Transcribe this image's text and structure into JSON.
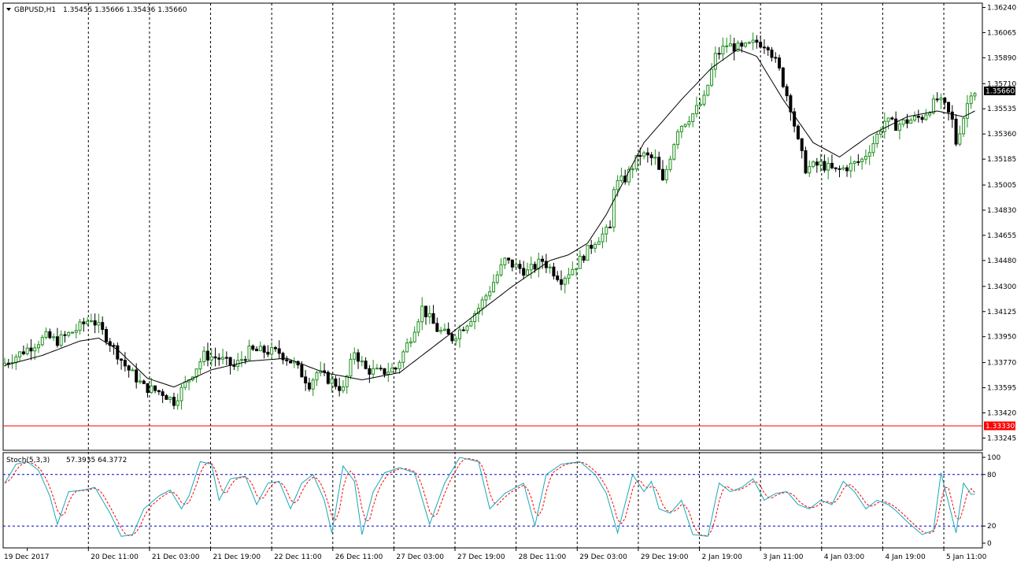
{
  "header": {
    "symbol": "GBPUSD,H1",
    "ohlc": "1.35455 1.35666 1.35436 1.35660"
  },
  "colors": {
    "bull": "#1e8f1e",
    "bear": "#000000",
    "ma": "#000000",
    "level": "#ff0000",
    "price_tag": "#000000",
    "stoch_main": "#1aa7b8",
    "stoch_signal": "#ff0000",
    "stoch_levels": "#0000cc",
    "grid": "#000000"
  },
  "chart_data": [
    {
      "type": "candlestick",
      "timeframe": "H1",
      "ylim": [
        1.3316,
        1.3627
      ],
      "y_ticks": [
        "1.36240",
        "1.36065",
        "1.35890",
        "1.35710",
        "1.35535",
        "1.35360",
        "1.35185",
        "1.35005",
        "1.34830",
        "1.34655",
        "1.34480",
        "1.34300",
        "1.34125",
        "1.33950",
        "1.33770",
        "1.33595",
        "1.33420",
        "1.33245"
      ],
      "x_ticks": [
        "19 Dec 2017",
        "20 Dec 11:00",
        "21 Dec 03:00",
        "21 Dec 19:00",
        "22 Dec 11:00",
        "26 Dec 11:00",
        "27 Dec 03:00",
        "27 Dec 19:00",
        "28 Dec 11:00",
        "29 Dec 03:00",
        "29 Dec 19:00",
        "2 Jan 19:00",
        "3 Jan 11:00",
        "4 Jan 03:00",
        "4 Jan 19:00",
        "5 Jan 11:00"
      ],
      "current_price": "1.35660",
      "level_price": "1.33330",
      "ma_path": [
        [
          0,
          1.3375
        ],
        [
          10,
          1.3382
        ],
        [
          20,
          1.3392
        ],
        [
          25,
          1.3394
        ],
        [
          30,
          1.3386
        ],
        [
          38,
          1.3366
        ],
        [
          45,
          1.336
        ],
        [
          55,
          1.3372
        ],
        [
          65,
          1.3378
        ],
        [
          75,
          1.338
        ],
        [
          85,
          1.337
        ],
        [
          95,
          1.3365
        ],
        [
          105,
          1.337
        ],
        [
          115,
          1.339
        ],
        [
          125,
          1.341
        ],
        [
          135,
          1.343
        ],
        [
          145,
          1.3448
        ],
        [
          150,
          1.3452
        ],
        [
          155,
          1.346
        ],
        [
          160,
          1.348
        ],
        [
          170,
          1.353
        ],
        [
          180,
          1.356
        ],
        [
          188,
          1.3582
        ],
        [
          195,
          1.3595
        ],
        [
          200,
          1.359
        ],
        [
          207,
          1.356
        ],
        [
          215,
          1.353
        ],
        [
          222,
          1.352
        ],
        [
          230,
          1.3535
        ],
        [
          240,
          1.3548
        ],
        [
          248,
          1.3552
        ],
        [
          255,
          1.3548
        ],
        [
          258,
          1.3552
        ]
      ],
      "candles_anchor": [
        [
          0,
          1.3375
        ],
        [
          6,
          1.3385
        ],
        [
          12,
          1.3395
        ],
        [
          15,
          1.3392
        ],
        [
          20,
          1.34
        ],
        [
          24,
          1.3408
        ],
        [
          28,
          1.3395
        ],
        [
          33,
          1.3375
        ],
        [
          38,
          1.336
        ],
        [
          43,
          1.3356
        ],
        [
          46,
          1.335
        ],
        [
          49,
          1.3362
        ],
        [
          54,
          1.3382
        ],
        [
          58,
          1.338
        ],
        [
          62,
          1.3374
        ],
        [
          66,
          1.3385
        ],
        [
          70,
          1.3385
        ],
        [
          74,
          1.3384
        ],
        [
          78,
          1.3376
        ],
        [
          82,
          1.3362
        ],
        [
          84,
          1.337
        ],
        [
          88,
          1.3364
        ],
        [
          91,
          1.3358
        ],
        [
          94,
          1.3385
        ],
        [
          97,
          1.3372
        ],
        [
          101,
          1.337
        ],
        [
          105,
          1.3373
        ],
        [
          109,
          1.3395
        ],
        [
          112,
          1.3415
        ],
        [
          116,
          1.34
        ],
        [
          120,
          1.3394
        ],
        [
          124,
          1.3405
        ],
        [
          127,
          1.3415
        ],
        [
          130,
          1.3428
        ],
        [
          134,
          1.3448
        ],
        [
          136,
          1.3445
        ],
        [
          140,
          1.344
        ],
        [
          144,
          1.3448
        ],
        [
          149,
          1.3435
        ],
        [
          153,
          1.3445
        ],
        [
          156,
          1.3455
        ],
        [
          158,
          1.3462
        ],
        [
          162,
          1.347
        ],
        [
          163,
          1.35
        ],
        [
          166,
          1.3505
        ],
        [
          170,
          1.3522
        ],
        [
          174,
          1.3518
        ],
        [
          176,
          1.3502
        ],
        [
          180,
          1.354
        ],
        [
          184,
          1.355
        ],
        [
          187,
          1.356
        ],
        [
          190,
          1.359
        ],
        [
          193,
          1.3598
        ],
        [
          197,
          1.3595
        ],
        [
          201,
          1.36
        ],
        [
          204,
          1.3598
        ],
        [
          207,
          1.358
        ],
        [
          210,
          1.3555
        ],
        [
          212,
          1.353
        ],
        [
          214,
          1.3512
        ],
        [
          218,
          1.3515
        ],
        [
          222,
          1.351
        ],
        [
          226,
          1.3514
        ],
        [
          229,
          1.3518
        ],
        [
          232,
          1.353
        ],
        [
          235,
          1.3545
        ],
        [
          238,
          1.3542
        ],
        [
          241,
          1.3545
        ],
        [
          245,
          1.3548
        ],
        [
          249,
          1.356
        ],
        [
          251,
          1.3555
        ],
        [
          253,
          1.3545
        ],
        [
          254,
          1.353
        ],
        [
          256,
          1.3548
        ],
        [
          258,
          1.3566
        ]
      ],
      "volatility": 0.0012
    },
    {
      "type": "line",
      "name": "Stoch(5,3,3)",
      "values_text": "57.3935 64.3772",
      "ylim": [
        0,
        100
      ],
      "y_ticks": [
        "100",
        "80",
        "20",
        "0"
      ],
      "levels": [
        80,
        20
      ],
      "main_anchor": [
        [
          0,
          70
        ],
        [
          3,
          92
        ],
        [
          6,
          95
        ],
        [
          9,
          85
        ],
        [
          12,
          55
        ],
        [
          14,
          22
        ],
        [
          17,
          60
        ],
        [
          21,
          62
        ],
        [
          24,
          65
        ],
        [
          28,
          35
        ],
        [
          31,
          8
        ],
        [
          34,
          10
        ],
        [
          37,
          40
        ],
        [
          41,
          55
        ],
        [
          44,
          62
        ],
        [
          47,
          40
        ],
        [
          49,
          55
        ],
        [
          52,
          95
        ],
        [
          55,
          92
        ],
        [
          57,
          50
        ],
        [
          60,
          75
        ],
        [
          64,
          78
        ],
        [
          67,
          45
        ],
        [
          70,
          70
        ],
        [
          73,
          72
        ],
        [
          76,
          40
        ],
        [
          79,
          70
        ],
        [
          82,
          80
        ],
        [
          85,
          50
        ],
        [
          87,
          12
        ],
        [
          90,
          90
        ],
        [
          93,
          72
        ],
        [
          95,
          10
        ],
        [
          98,
          60
        ],
        [
          101,
          82
        ],
        [
          105,
          88
        ],
        [
          109,
          82
        ],
        [
          113,
          22
        ],
        [
          117,
          70
        ],
        [
          121,
          100
        ],
        [
          126,
          95
        ],
        [
          129,
          40
        ],
        [
          133,
          58
        ],
        [
          138,
          70
        ],
        [
          141,
          20
        ],
        [
          144,
          80
        ],
        [
          148,
          92
        ],
        [
          153,
          95
        ],
        [
          157,
          80
        ],
        [
          160,
          58
        ],
        [
          163,
          12
        ],
        [
          167,
          80
        ],
        [
          170,
          60
        ],
        [
          172,
          72
        ],
        [
          174,
          40
        ],
        [
          177,
          35
        ],
        [
          180,
          50
        ],
        [
          183,
          10
        ],
        [
          187,
          8
        ],
        [
          190,
          70
        ],
        [
          193,
          60
        ],
        [
          196,
          65
        ],
        [
          199,
          75
        ],
        [
          202,
          50
        ],
        [
          205,
          58
        ],
        [
          208,
          60
        ],
        [
          211,
          45
        ],
        [
          214,
          40
        ],
        [
          217,
          50
        ],
        [
          220,
          45
        ],
        [
          223,
          72
        ],
        [
          226,
          60
        ],
        [
          229,
          40
        ],
        [
          232,
          50
        ],
        [
          235,
          45
        ],
        [
          237,
          38
        ],
        [
          240,
          25
        ],
        [
          244,
          10
        ],
        [
          247,
          15
        ],
        [
          249,
          82
        ],
        [
          253,
          12
        ],
        [
          255,
          70
        ],
        [
          257,
          57
        ]
      ]
    }
  ]
}
